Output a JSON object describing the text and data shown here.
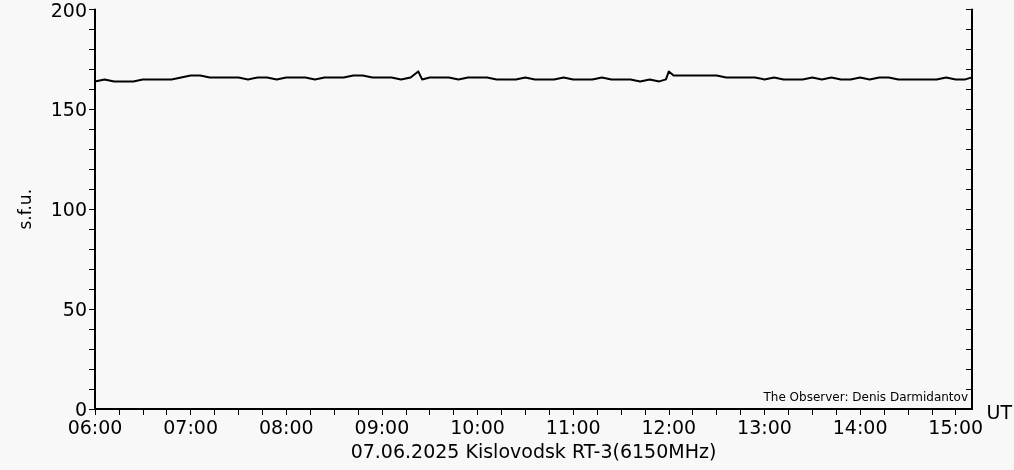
{
  "chart_data": {
    "type": "line",
    "xlabel": "07.06.2025 Kislovodsk RT-3(6150MHz)",
    "ylabel": "s.f.u.",
    "annotations": [
      "UT",
      "The Observer: Denis Darmidantov"
    ],
    "grid": false,
    "marker": "none",
    "line_style": "solid",
    "x": [
      6.0,
      6.1,
      6.2,
      6.3,
      6.4,
      6.5,
      6.6,
      6.7,
      6.8,
      6.9,
      7.0,
      7.1,
      7.2,
      7.3,
      7.4,
      7.5,
      7.6,
      7.7,
      7.8,
      7.9,
      8.0,
      8.1,
      8.2,
      8.3,
      8.4,
      8.5,
      8.6,
      8.7,
      8.8,
      8.9,
      9.0,
      9.1,
      9.2,
      9.3,
      9.38,
      9.42,
      9.5,
      9.6,
      9.7,
      9.8,
      9.9,
      10.0,
      10.1,
      10.2,
      10.3,
      10.4,
      10.5,
      10.6,
      10.7,
      10.8,
      10.9,
      11.0,
      11.1,
      11.2,
      11.3,
      11.4,
      11.5,
      11.6,
      11.7,
      11.8,
      11.9,
      11.97,
      12.0,
      12.05,
      12.1,
      12.2,
      12.3,
      12.4,
      12.5,
      12.6,
      12.7,
      12.8,
      12.9,
      13.0,
      13.1,
      13.2,
      13.3,
      13.4,
      13.5,
      13.6,
      13.7,
      13.8,
      13.9,
      14.0,
      14.1,
      14.2,
      14.3,
      14.4,
      14.5,
      14.6,
      14.7,
      14.8,
      14.9,
      15.0,
      15.1,
      15.17
    ],
    "series": [
      {
        "color": "#000000",
        "values": [
          164,
          165,
          164,
          164,
          164,
          165,
          165,
          165,
          165,
          166,
          167,
          167,
          166,
          166,
          166,
          166,
          165,
          166,
          166,
          165,
          166,
          166,
          166,
          165,
          166,
          166,
          166,
          167,
          167,
          166,
          166,
          166,
          165,
          166,
          169,
          165,
          166,
          166,
          166,
          165,
          166,
          166,
          166,
          165,
          165,
          165,
          166,
          165,
          165,
          165,
          166,
          165,
          165,
          165,
          166,
          165,
          165,
          165,
          164,
          165,
          164,
          165,
          169,
          167,
          167,
          167,
          167,
          167,
          167,
          166,
          166,
          166,
          166,
          165,
          166,
          165,
          165,
          165,
          166,
          165,
          166,
          165,
          165,
          166,
          165,
          166,
          166,
          165,
          165,
          165,
          165,
          165,
          166,
          165,
          165,
          166
        ]
      }
    ],
    "xlim": [
      6,
      15.17
    ],
    "xticks": [
      {
        "value": 6,
        "label": "06:00"
      },
      {
        "value": 6.25,
        "label": null
      },
      {
        "value": 6.5,
        "label": null
      },
      {
        "value": 6.75,
        "label": null
      },
      {
        "value": 7,
        "label": "07:00"
      },
      {
        "value": 7.25,
        "label": null
      },
      {
        "value": 7.5,
        "label": null
      },
      {
        "value": 7.75,
        "label": null
      },
      {
        "value": 8,
        "label": "08:00"
      },
      {
        "value": 8.25,
        "label": null
      },
      {
        "value": 8.5,
        "label": null
      },
      {
        "value": 8.75,
        "label": null
      },
      {
        "value": 9,
        "label": "09:00"
      },
      {
        "value": 9.25,
        "label": null
      },
      {
        "value": 9.5,
        "label": null
      },
      {
        "value": 9.75,
        "label": null
      },
      {
        "value": 10,
        "label": "10:00"
      },
      {
        "value": 10.25,
        "label": null
      },
      {
        "value": 10.5,
        "label": null
      },
      {
        "value": 10.75,
        "label": null
      },
      {
        "value": 11,
        "label": "11:00"
      },
      {
        "value": 11.25,
        "label": null
      },
      {
        "value": 11.5,
        "label": null
      },
      {
        "value": 11.75,
        "label": null
      },
      {
        "value": 12,
        "label": "12:00"
      },
      {
        "value": 12.25,
        "label": null
      },
      {
        "value": 12.5,
        "label": null
      },
      {
        "value": 12.75,
        "label": null
      },
      {
        "value": 13,
        "label": "13:00"
      },
      {
        "value": 13.25,
        "label": null
      },
      {
        "value": 13.5,
        "label": null
      },
      {
        "value": 13.75,
        "label": null
      },
      {
        "value": 14,
        "label": "14:00"
      },
      {
        "value": 14.25,
        "label": null
      },
      {
        "value": 14.5,
        "label": null
      },
      {
        "value": 14.75,
        "label": null
      },
      {
        "value": 15,
        "label": "15:00"
      }
    ],
    "ylim": [
      0,
      200
    ],
    "yticks": [
      0,
      {
        "value": 10,
        "label": null
      },
      {
        "value": 20,
        "label": null
      },
      {
        "value": 30,
        "label": null
      },
      {
        "value": 40,
        "label": null
      },
      50,
      {
        "value": 60,
        "label": null
      },
      {
        "value": 70,
        "label": null
      },
      {
        "value": 80,
        "label": null
      },
      {
        "value": 90,
        "label": null
      },
      100,
      {
        "value": 110,
        "label": null
      },
      {
        "value": 120,
        "label": null
      },
      {
        "value": 130,
        "label": null
      },
      {
        "value": 140,
        "label": null
      },
      150,
      {
        "value": 160,
        "label": null
      },
      {
        "value": 170,
        "label": null
      },
      {
        "value": 180,
        "label": null
      },
      {
        "value": 190,
        "label": null
      },
      200
    ]
  }
}
